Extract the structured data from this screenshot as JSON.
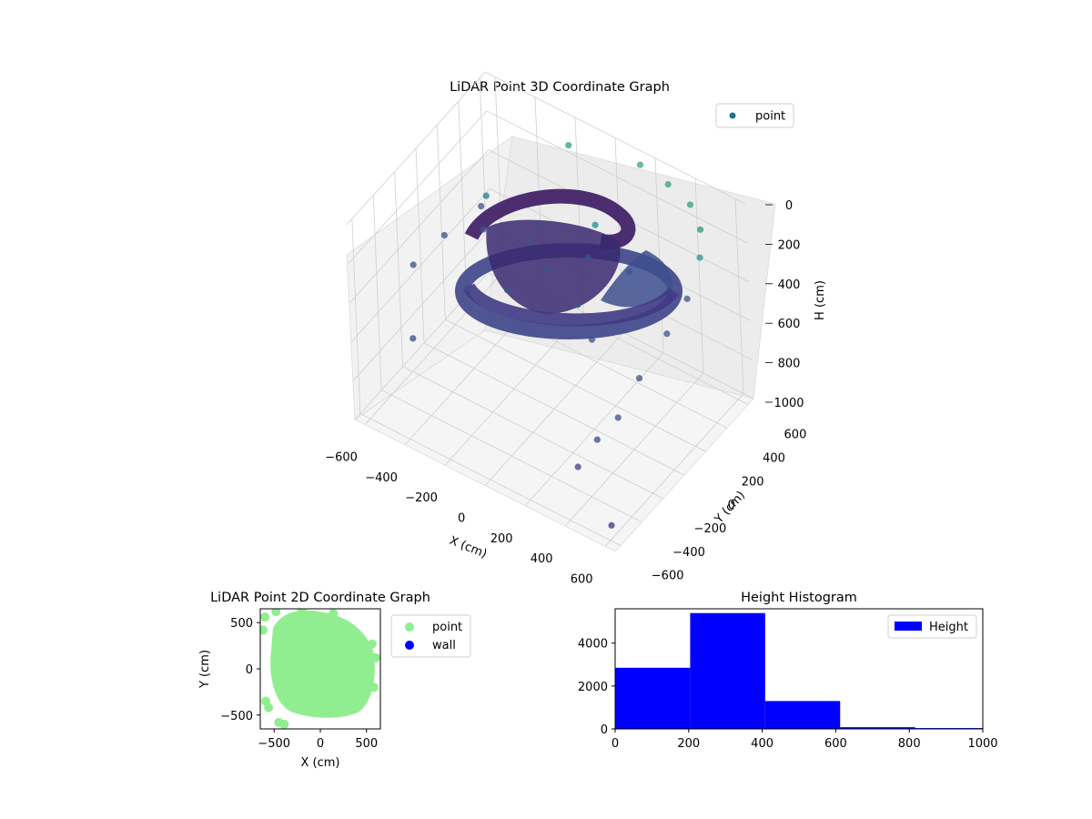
{
  "chart_data": [
    {
      "type": "scatter",
      "projection": "3d",
      "title": "LiDAR Point 3D Coordinate Graph",
      "xlabel": "X (cm)",
      "ylabel": "Y (cm)",
      "zlabel": "H (cm)",
      "xlim": [
        -650,
        650
      ],
      "ylim": [
        -650,
        650
      ],
      "zlim": [
        1000,
        0
      ],
      "x_ticks": [
        -600,
        -400,
        -200,
        0,
        200,
        400,
        600
      ],
      "y_ticks": [
        -600,
        -400,
        -200,
        0,
        200,
        400,
        600
      ],
      "z_ticks": [
        0,
        200,
        400,
        600,
        800,
        1000
      ],
      "x_tick_labels": [
        "−600",
        "−400",
        "−200",
        "0",
        "200",
        "400",
        "600"
      ],
      "y_tick_labels": [
        "−600",
        "−400",
        "−200",
        "0",
        "200",
        "400",
        "600"
      ],
      "z_tick_labels": [
        "0",
        "200",
        "400",
        "600",
        "800",
        "1000"
      ],
      "grid": true,
      "legend": "top-right",
      "series": [
        {
          "name": "point",
          "color_map": "viridis",
          "legend_color": "#21768e",
          "points": [
            [
              0,
              0,
              280
            ],
            [
              120,
              150,
              250
            ],
            [
              -150,
              100,
              270
            ],
            [
              200,
              -100,
              300
            ],
            [
              -100,
              -200,
              320
            ],
            [
              300,
              200,
              260
            ],
            [
              -350,
              50,
              290
            ],
            [
              50,
              350,
              240
            ],
            [
              -250,
              -300,
              330
            ],
            [
              350,
              -250,
              310
            ],
            [
              -500,
              300,
              400
            ],
            [
              -580,
              100,
              470
            ],
            [
              -620,
              -120,
              510
            ],
            [
              -540,
              420,
              440
            ],
            [
              500,
              500,
              120
            ],
            [
              560,
              380,
              160
            ],
            [
              600,
              180,
              230
            ],
            [
              620,
              -50,
              260
            ],
            [
              600,
              -280,
              360
            ],
            [
              580,
              -450,
              470
            ],
            [
              520,
              -540,
              560
            ],
            [
              420,
              560,
              70
            ],
            [
              300,
              580,
              40
            ],
            [
              150,
              600,
              30
            ],
            [
              -200,
              580,
              100
            ],
            [
              -450,
              -450,
              600
            ],
            [
              450,
              -600,
              700
            ],
            [
              620,
              -620,
              900
            ]
          ]
        }
      ]
    },
    {
      "type": "scatter",
      "title": "LiDAR Point 2D Coordinate Graph",
      "xlabel": "X (cm)",
      "ylabel": "Y (cm)",
      "xlim": [
        -650,
        650
      ],
      "ylim": [
        -650,
        650
      ],
      "x_ticks": [
        -500,
        0,
        500
      ],
      "y_ticks": [
        -500,
        0,
        500
      ],
      "x_tick_labels": [
        "−500",
        "0",
        "500"
      ],
      "y_tick_labels": [
        "−500",
        "0",
        "500"
      ],
      "legend": "outside right",
      "series": [
        {
          "name": "point",
          "color": "#90ee90"
        },
        {
          "name": "wall",
          "color": "#0000ff"
        }
      ]
    },
    {
      "type": "bar",
      "title": "Height Histogram",
      "xlim": [
        0,
        1000
      ],
      "ylim": [
        0,
        5600
      ],
      "x_ticks": [
        0,
        200,
        400,
        600,
        800,
        1000
      ],
      "y_ticks": [
        0,
        2000,
        4000
      ],
      "x_tick_labels": [
        "0",
        "200",
        "400",
        "600",
        "800",
        "1000"
      ],
      "y_tick_labels": [
        "0",
        "2000",
        "4000"
      ],
      "bin_edges": [
        0,
        204,
        408,
        612,
        816,
        1020
      ],
      "values": [
        2850,
        5400,
        1300,
        80,
        40
      ],
      "legend": "top-right",
      "series": [
        {
          "name": "Height",
          "color": "#0000ff"
        }
      ]
    }
  ]
}
